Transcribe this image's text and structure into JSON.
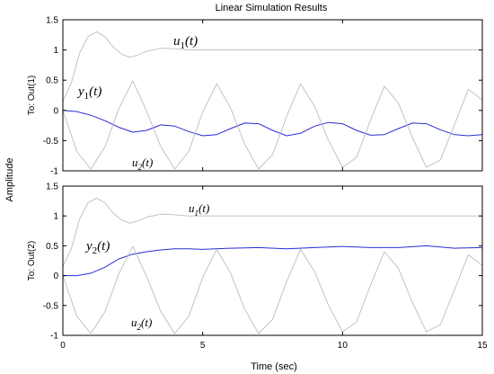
{
  "chart_data": {
    "type": "line",
    "title": "Linear Simulation Results",
    "xlabel": "Time (sec)",
    "ylabel": "Amplitude",
    "xlim": [
      0,
      15
    ],
    "xticks": [
      0,
      5,
      10,
      15
    ],
    "ylim": [
      -1,
      1.5
    ],
    "yticks": [
      -1,
      -0.5,
      0,
      0.5,
      1,
      1.5
    ],
    "grid": false,
    "colors": {
      "output": "#2b2bd6",
      "input": "#bdbdbd"
    },
    "panels": [
      {
        "ylabel": "To: Out(1)",
        "annotations": [
          {
            "main": "u",
            "sub": "1",
            "tail": "(t)",
            "italic_sub": false,
            "size": 15
          },
          {
            "main": "y",
            "sub": "1",
            "tail": "(t)",
            "italic_sub": false,
            "size": 15
          },
          {
            "main": "u",
            "sub": "2",
            "tail": "(t)",
            "italic_sub": true,
            "size": 13
          }
        ],
        "series": [
          {
            "role": "output",
            "x": [
              0,
              0.5,
              1,
              1.5,
              2,
              2.5,
              3,
              3.5,
              4,
              4.5,
              5,
              5.5,
              6,
              6.5,
              7,
              7.5,
              8,
              8.5,
              9,
              9.5,
              10,
              10.5,
              11,
              11.5,
              12,
              12.5,
              13,
              13.5,
              14,
              14.5,
              15
            ],
            "y": [
              0,
              -0.02,
              -0.08,
              -0.17,
              -0.28,
              -0.36,
              -0.33,
              -0.24,
              -0.26,
              -0.35,
              -0.42,
              -0.4,
              -0.3,
              -0.21,
              -0.22,
              -0.33,
              -0.42,
              -0.38,
              -0.26,
              -0.2,
              -0.22,
              -0.33,
              -0.41,
              -0.4,
              -0.3,
              -0.21,
              -0.22,
              -0.32,
              -0.4,
              -0.42,
              -0.4
            ]
          },
          {
            "role": "input",
            "x": [
              0,
              0.3,
              0.6,
              0.9,
              1.2,
              1.5,
              1.8,
              2.1,
              2.4,
              2.7,
              3,
              3.5,
              4,
              4.5,
              5,
              6,
              7,
              8,
              9,
              10,
              11,
              12,
              13,
              14,
              15
            ],
            "y": [
              0.15,
              0.45,
              0.95,
              1.22,
              1.3,
              1.22,
              1.05,
              0.93,
              0.88,
              0.92,
              0.98,
              1.03,
              1.02,
              1,
              1,
              1,
              1,
              1,
              1,
              1,
              1,
              1,
              1,
              1,
              1
            ]
          },
          {
            "role": "input",
            "x": [
              0,
              0.5,
              1,
              1.5,
              2,
              2.5,
              3,
              3.5,
              4,
              4.5,
              5,
              5.5,
              6,
              6.5,
              7,
              7.5,
              8,
              8.5,
              9,
              9.5,
              10,
              10.5,
              11,
              11.5,
              12,
              12.5,
              13,
              13.5,
              14,
              14.5,
              15
            ],
            "y": [
              0,
              -0.68,
              -0.97,
              -0.61,
              0.03,
              0.49,
              -0.02,
              -0.6,
              -0.97,
              -0.68,
              -0.03,
              0.44,
              0.04,
              -0.56,
              -0.97,
              -0.73,
              -0.1,
              0.44,
              0.07,
              -0.5,
              -0.94,
              -0.78,
              -0.16,
              0.4,
              0.12,
              -0.45,
              -0.94,
              -0.82,
              -0.24,
              0.35,
              0.17
            ]
          }
        ]
      },
      {
        "ylabel": "To: Out(2)",
        "annotations": [
          {
            "main": "u",
            "sub": "1",
            "tail": "(t)",
            "italic_sub": true,
            "size": 13
          },
          {
            "main": "y",
            "sub": "2",
            "tail": "(t)",
            "italic_sub": false,
            "size": 15
          },
          {
            "main": "u",
            "sub": "2",
            "tail": "(t)",
            "italic_sub": true,
            "size": 13
          }
        ],
        "series": [
          {
            "role": "output",
            "x": [
              0,
              0.5,
              1,
              1.5,
              2,
              2.5,
              3,
              3.5,
              4,
              4.5,
              5,
              6,
              7,
              8,
              9,
              10,
              11,
              12,
              13,
              14,
              15
            ],
            "y": [
              0,
              0,
              0.04,
              0.14,
              0.28,
              0.36,
              0.4,
              0.43,
              0.45,
              0.45,
              0.44,
              0.46,
              0.47,
              0.45,
              0.47,
              0.49,
              0.47,
              0.47,
              0.5,
              0.46,
              0.47
            ]
          },
          {
            "role": "input",
            "x": [
              0,
              0.3,
              0.6,
              0.9,
              1.2,
              1.5,
              1.8,
              2.1,
              2.4,
              2.7,
              3,
              3.5,
              4,
              4.5,
              5,
              6,
              7,
              8,
              9,
              10,
              11,
              12,
              13,
              14,
              15
            ],
            "y": [
              0.15,
              0.45,
              0.95,
              1.22,
              1.3,
              1.22,
              1.05,
              0.93,
              0.88,
              0.92,
              0.98,
              1.03,
              1.02,
              1,
              1,
              1,
              1,
              1,
              1,
              1,
              1,
              1,
              1,
              1,
              1
            ]
          },
          {
            "role": "input",
            "x": [
              0,
              0.5,
              1,
              1.5,
              2,
              2.5,
              3,
              3.5,
              4,
              4.5,
              5,
              5.5,
              6,
              6.5,
              7,
              7.5,
              8,
              8.5,
              9,
              9.5,
              10,
              10.5,
              11,
              11.5,
              12,
              12.5,
              13,
              13.5,
              14,
              14.5,
              15
            ],
            "y": [
              0,
              -0.68,
              -0.97,
              -0.61,
              0.03,
              0.49,
              -0.02,
              -0.6,
              -0.97,
              -0.68,
              -0.03,
              0.44,
              0.04,
              -0.56,
              -0.97,
              -0.73,
              -0.1,
              0.44,
              0.07,
              -0.5,
              -0.94,
              -0.78,
              -0.16,
              0.4,
              0.12,
              -0.45,
              -0.94,
              -0.82,
              -0.24,
              0.35,
              0.17
            ]
          }
        ]
      }
    ]
  }
}
